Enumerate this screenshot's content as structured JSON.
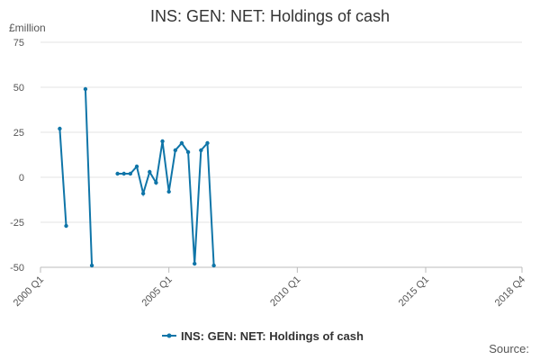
{
  "chart_data": {
    "type": "line",
    "title": "INS: GEN: NET: Holdings of cash",
    "y_label": "£million",
    "source": "Source:",
    "categories": [
      "2000 Q1",
      null,
      null,
      null,
      null,
      null,
      null,
      null,
      null,
      null,
      null,
      null,
      null,
      null,
      null,
      null,
      null,
      null,
      null,
      null,
      "2005 Q1",
      null,
      null,
      null,
      null,
      null,
      null,
      null,
      null,
      null,
      null,
      null,
      null,
      null,
      null,
      null,
      null,
      null,
      null,
      null,
      "2010 Q1",
      null,
      null,
      null,
      null,
      null,
      null,
      null,
      null,
      null,
      null,
      null,
      null,
      null,
      null,
      null,
      null,
      null,
      null,
      null,
      "2015 Q1",
      null,
      null,
      null,
      null,
      null,
      null,
      null,
      null,
      null,
      null,
      null,
      null,
      null,
      null,
      "2018 Q4"
    ],
    "series": [
      {
        "name": "INS: GEN: NET: Holdings of cash",
        "color": "#0f75a8",
        "values": [
          null,
          null,
          null,
          27,
          -27,
          null,
          null,
          49,
          -49,
          null,
          null,
          null,
          2,
          2,
          2,
          6,
          -9,
          3,
          -3,
          20,
          -8,
          15,
          19,
          14,
          -48,
          15,
          19,
          -49,
          null,
          null,
          null,
          null,
          null,
          null,
          null,
          null,
          null,
          null,
          null,
          null,
          null,
          null,
          null,
          null,
          null,
          null,
          null,
          null,
          null,
          null,
          null,
          null,
          null,
          null,
          null,
          null,
          null,
          null,
          null,
          null,
          null,
          null,
          null,
          null,
          null,
          null,
          null,
          null,
          null,
          null,
          null,
          null,
          null,
          null,
          null,
          null
        ]
      }
    ],
    "ylim": [
      -50,
      75
    ],
    "yticks": [
      -50,
      -25,
      0,
      25,
      50,
      75
    ],
    "grid": true
  }
}
